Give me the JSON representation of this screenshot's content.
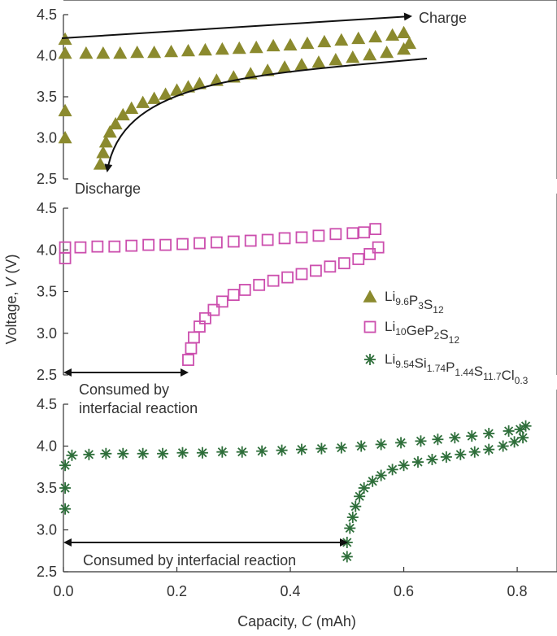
{
  "chart_data": {
    "type": "scatter",
    "xlabel": "Capacity, C (mAh)",
    "ylabel": "Voltage, V (V)",
    "xlim": [
      0,
      0.83
    ],
    "x_ticks": [
      {
        "value": 0.0,
        "label": "0.0"
      },
      {
        "value": 0.2,
        "label": "0.2"
      },
      {
        "value": 0.4,
        "label": "0.4"
      },
      {
        "value": 0.6,
        "label": "0.6"
      },
      {
        "value": 0.8,
        "label": "0.8"
      }
    ],
    "legend": {
      "placement": "center-right",
      "entries": [
        {
          "marker": "triangle",
          "color": "#8b8a2e",
          "label_main": "Li",
          "parts": [
            [
              "Li",
              ""
            ],
            [
              "",
              "9.6"
            ],
            [
              "P",
              ""
            ],
            [
              "",
              "3"
            ],
            [
              "S",
              ""
            ],
            [
              "",
              "12"
            ]
          ]
        },
        {
          "marker": "square",
          "color": "#cc4fae",
          "parts": [
            [
              "Li",
              ""
            ],
            [
              "",
              "10"
            ],
            [
              "GeP",
              ""
            ],
            [
              "",
              "2"
            ],
            [
              "S",
              ""
            ],
            [
              "",
              "12"
            ]
          ]
        },
        {
          "marker": "asterisk",
          "color": "#2e6e3a",
          "parts": [
            [
              "Li",
              ""
            ],
            [
              "",
              "9.54"
            ],
            [
              "Si",
              ""
            ],
            [
              "",
              "1.74"
            ],
            [
              "P",
              ""
            ],
            [
              "",
              "1.44"
            ],
            [
              "S",
              ""
            ],
            [
              "",
              "11.7"
            ],
            [
              "Cl",
              ""
            ],
            [
              "",
              "0.3"
            ]
          ]
        }
      ]
    },
    "panels": [
      {
        "ylim": [
          2.5,
          4.5
        ],
        "y_ticks": [
          {
            "value": 2.5,
            "label": "2.5"
          },
          {
            "value": 3.0,
            "label": "3.0"
          },
          {
            "value": 3.5,
            "label": "3.5"
          },
          {
            "value": 4.0,
            "label": "4.0"
          },
          {
            "value": 4.5,
            "label": "4.5"
          }
        ],
        "annotations": {
          "charge": "Charge",
          "discharge": "Discharge"
        },
        "series": [
          {
            "marker": "triangle",
            "color": "#8b8a2e",
            "points": [
              [
                0.003,
                4.2
              ],
              [
                0.003,
                4.03
              ],
              [
                0.003,
                3.33
              ],
              [
                0.003,
                3.0
              ],
              [
                0.04,
                4.03
              ],
              [
                0.07,
                4.03
              ],
              [
                0.1,
                4.03
              ],
              [
                0.13,
                4.04
              ],
              [
                0.16,
                4.04
              ],
              [
                0.19,
                4.05
              ],
              [
                0.22,
                4.06
              ],
              [
                0.25,
                4.07
              ],
              [
                0.28,
                4.08
              ],
              [
                0.31,
                4.09
              ],
              [
                0.34,
                4.1
              ],
              [
                0.37,
                4.12
              ],
              [
                0.4,
                4.13
              ],
              [
                0.43,
                4.15
              ],
              [
                0.46,
                4.17
              ],
              [
                0.49,
                4.19
              ],
              [
                0.52,
                4.21
              ],
              [
                0.55,
                4.23
              ],
              [
                0.58,
                4.25
              ],
              [
                0.6,
                4.28
              ],
              [
                0.61,
                4.15
              ],
              [
                0.065,
                2.68
              ],
              [
                0.07,
                2.82
              ],
              [
                0.075,
                2.95
              ],
              [
                0.082,
                3.07
              ],
              [
                0.092,
                3.17
              ],
              [
                0.105,
                3.28
              ],
              [
                0.12,
                3.36
              ],
              [
                0.14,
                3.43
              ],
              [
                0.16,
                3.48
              ],
              [
                0.18,
                3.53
              ],
              [
                0.2,
                3.58
              ],
              [
                0.22,
                3.62
              ],
              [
                0.24,
                3.66
              ],
              [
                0.27,
                3.7
              ],
              [
                0.3,
                3.74
              ],
              [
                0.33,
                3.78
              ],
              [
                0.36,
                3.82
              ],
              [
                0.39,
                3.86
              ],
              [
                0.42,
                3.89
              ],
              [
                0.45,
                3.92
              ],
              [
                0.48,
                3.95
              ],
              [
                0.51,
                3.98
              ],
              [
                0.54,
                4.01
              ],
              [
                0.57,
                4.04
              ],
              [
                0.6,
                4.08
              ]
            ]
          }
        ]
      },
      {
        "ylim": [
          2.5,
          4.5
        ],
        "y_ticks": [
          {
            "value": 2.5,
            "label": "2.5"
          },
          {
            "value": 3.0,
            "label": "3.0"
          },
          {
            "value": 3.5,
            "label": "3.5"
          },
          {
            "value": 4.0,
            "label": "4.0"
          },
          {
            "value": 4.5,
            "label": "4.5"
          }
        ],
        "annotations": {
          "consumed_line1": "Consumed by",
          "consumed_line2": "interfacial reaction"
        },
        "series": [
          {
            "marker": "square",
            "color": "#cc4fae",
            "points": [
              [
                0.003,
                4.03
              ],
              [
                0.003,
                3.9
              ],
              [
                0.03,
                4.03
              ],
              [
                0.06,
                4.04
              ],
              [
                0.09,
                4.04
              ],
              [
                0.12,
                4.05
              ],
              [
                0.15,
                4.06
              ],
              [
                0.18,
                4.06
              ],
              [
                0.21,
                4.07
              ],
              [
                0.24,
                4.08
              ],
              [
                0.27,
                4.09
              ],
              [
                0.3,
                4.1
              ],
              [
                0.33,
                4.11
              ],
              [
                0.36,
                4.12
              ],
              [
                0.39,
                4.14
              ],
              [
                0.42,
                4.15
              ],
              [
                0.45,
                4.17
              ],
              [
                0.48,
                4.19
              ],
              [
                0.51,
                4.2
              ],
              [
                0.53,
                4.21
              ],
              [
                0.55,
                4.25
              ],
              [
                0.22,
                2.68
              ],
              [
                0.225,
                2.82
              ],
              [
                0.23,
                2.95
              ],
              [
                0.24,
                3.08
              ],
              [
                0.25,
                3.18
              ],
              [
                0.265,
                3.28
              ],
              [
                0.28,
                3.38
              ],
              [
                0.3,
                3.46
              ],
              [
                0.32,
                3.52
              ],
              [
                0.345,
                3.58
              ],
              [
                0.37,
                3.63
              ],
              [
                0.395,
                3.67
              ],
              [
                0.42,
                3.71
              ],
              [
                0.445,
                3.75
              ],
              [
                0.47,
                3.8
              ],
              [
                0.495,
                3.84
              ],
              [
                0.52,
                3.89
              ],
              [
                0.54,
                3.95
              ],
              [
                0.555,
                4.03
              ]
            ]
          }
        ]
      },
      {
        "ylim": [
          2.5,
          4.5
        ],
        "y_ticks": [
          {
            "value": 2.5,
            "label": "2.5"
          },
          {
            "value": 3.0,
            "label": "3.0"
          },
          {
            "value": 3.5,
            "label": "3.5"
          },
          {
            "value": 4.0,
            "label": "4.0"
          },
          {
            "value": 4.5,
            "label": "4.5"
          }
        ],
        "annotations": {
          "consumed": "Consumed by interfacial reaction"
        },
        "series": [
          {
            "marker": "asterisk",
            "color": "#2e6e3a",
            "points": [
              [
                0.003,
                3.25
              ],
              [
                0.003,
                3.5
              ],
              [
                0.003,
                3.77
              ],
              [
                0.015,
                3.89
              ],
              [
                0.045,
                3.9
              ],
              [
                0.075,
                3.91
              ],
              [
                0.105,
                3.91
              ],
              [
                0.14,
                3.91
              ],
              [
                0.175,
                3.91
              ],
              [
                0.21,
                3.92
              ],
              [
                0.245,
                3.92
              ],
              [
                0.28,
                3.93
              ],
              [
                0.315,
                3.93
              ],
              [
                0.35,
                3.94
              ],
              [
                0.385,
                3.95
              ],
              [
                0.42,
                3.96
              ],
              [
                0.455,
                3.97
              ],
              [
                0.49,
                3.98
              ],
              [
                0.525,
                4.0
              ],
              [
                0.56,
                4.02
              ],
              [
                0.595,
                4.04
              ],
              [
                0.63,
                4.06
              ],
              [
                0.66,
                4.08
              ],
              [
                0.69,
                4.1
              ],
              [
                0.72,
                4.12
              ],
              [
                0.75,
                4.15
              ],
              [
                0.785,
                4.18
              ],
              [
                0.805,
                4.2
              ],
              [
                0.815,
                4.24
              ],
              [
                0.5,
                2.68
              ],
              [
                0.5,
                2.85
              ],
              [
                0.505,
                3.02
              ],
              [
                0.51,
                3.15
              ],
              [
                0.515,
                3.28
              ],
              [
                0.522,
                3.4
              ],
              [
                0.53,
                3.5
              ],
              [
                0.545,
                3.58
              ],
              [
                0.56,
                3.65
              ],
              [
                0.58,
                3.72
              ],
              [
                0.6,
                3.77
              ],
              [
                0.625,
                3.81
              ],
              [
                0.65,
                3.84
              ],
              [
                0.675,
                3.87
              ],
              [
                0.7,
                3.9
              ],
              [
                0.725,
                3.93
              ],
              [
                0.75,
                3.96
              ],
              [
                0.775,
                4.0
              ],
              [
                0.795,
                4.05
              ],
              [
                0.81,
                4.1
              ]
            ]
          }
        ]
      }
    ]
  }
}
